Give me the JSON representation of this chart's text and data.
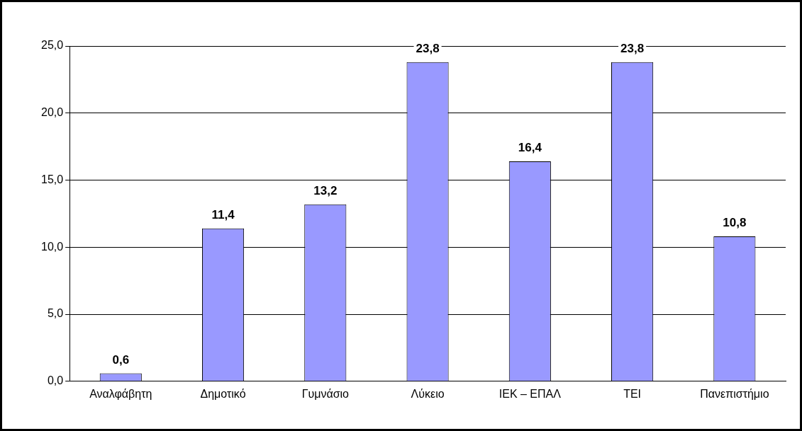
{
  "chart_data": {
    "type": "bar",
    "categories": [
      "Αναλφάβητη",
      "Δημοτικό",
      "Γυμνάσιο",
      "Λύκειο",
      "ΙΕΚ – ΕΠΑΛ",
      "ΤΕΙ",
      "Πανεπιστήμιο"
    ],
    "values": [
      0.6,
      11.4,
      13.2,
      23.8,
      16.4,
      23.8,
      10.8
    ],
    "value_labels": [
      "0,6",
      "11,4",
      "13,2",
      "23,8",
      "16,4",
      "23,8",
      "10,8"
    ],
    "color": "#9999ff",
    "ylim": [
      0,
      25
    ],
    "yticks": [
      {
        "value": 0,
        "label": "0,0"
      },
      {
        "value": 5,
        "label": "5,0"
      },
      {
        "value": 10,
        "label": "10,0"
      },
      {
        "value": 15,
        "label": "15,0"
      },
      {
        "value": 20,
        "label": "20,0"
      },
      {
        "value": 25,
        "label": "25,0"
      }
    ],
    "grid": "y"
  }
}
